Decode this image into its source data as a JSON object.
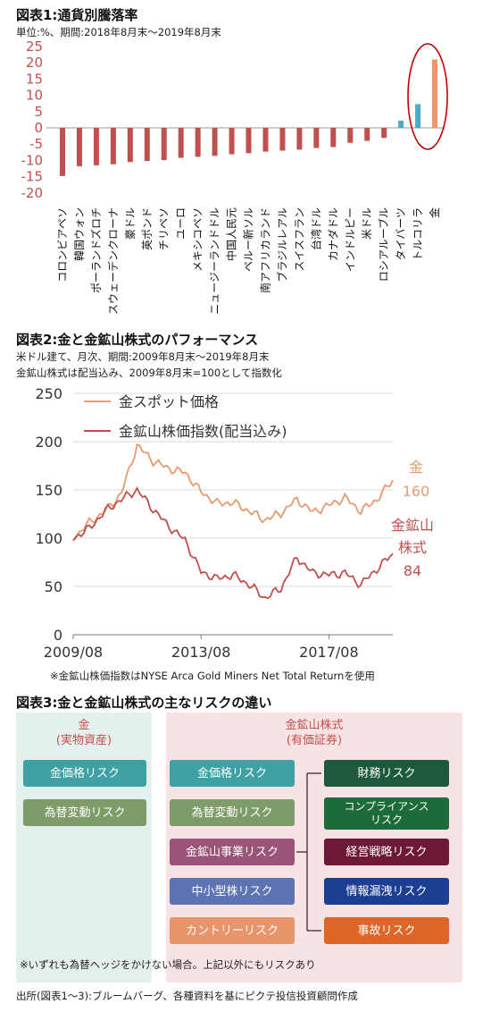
{
  "fig1": {
    "title": "図表1:通貨別騰落率",
    "subtitle": "単位:%、期間:2018年8月末〜2019年8月末"
  },
  "fig2": {
    "title": "図表2:金と金鉱山株式のパフォーマンス",
    "subtitle1": "米ドル建て、月次、期間:2009年8月末〜2019年8月末",
    "subtitle2": "金鉱山株式は配当込み、2009年8月末=100として指数化",
    "note": "※金鉱山株価指数はNYSE Arca Gold Miners Net Total Returnを使用",
    "gold_label": "金",
    "gold_value": "160",
    "miner_label1": "金鉱山",
    "miner_label2": "株式",
    "miner_value": "84"
  },
  "fig3": {
    "title": "図表3:金と金鉱山株式の主なリスクの違い",
    "gold_panel_title": "金\n(実物資産)",
    "miner_panel_title": "金鉱山株式\n(有価証券)",
    "gold_risks": [
      "金価格リスク",
      "為替変動リスク"
    ],
    "miner_risks": [
      "金価格リスク",
      "為替変動リスク",
      "金鉱山事業リスク",
      "中小型株リスク",
      "カントリーリスク"
    ],
    "business_risks": [
      "財務リスク",
      "コンプライアンス\nリスク",
      "経営戦略リスク",
      "情報漏洩リスク",
      "事故リスク"
    ],
    "note": "※いずれも為替ヘッジをかけない場合。上記以外にもリスクあり",
    "colors": {
      "gold_price": "#3fa0a6",
      "fx": "#7e9c68",
      "business": "#9a5478",
      "smallcap": "#5d73b2",
      "country": "#e8956b",
      "finance": "#1d5a3c",
      "compliance": "#1e6b3a",
      "strategy": "#6e1838",
      "info": "#1c3f93",
      "accident": "#dd6628",
      "gold_panel_bg": "#e4f0ee",
      "miner_panel_bg": "#f7e3e3",
      "gold_panel_text": "#c0504d",
      "miner_panel_text": "#c0504d"
    }
  },
  "source": "出所(図表1〜3):ブルームバーグ、各種資料を基にピクテ投信投資顧問作成",
  "chart_data": [
    {
      "type": "bar",
      "title": "図表1:通貨別騰落率",
      "ylim": [
        -20,
        25
      ],
      "yticks": [
        "25",
        "20",
        "15",
        "10",
        "5",
        "0",
        "-5",
        "-10",
        "-15",
        "-20"
      ],
      "categories": [
        "コロンビアペソ",
        "韓国ウォン",
        "ポーランドズロチ",
        "スウェーデンクローナ",
        "豪ドル",
        "英ポンド",
        "チリペソ",
        "ユーロ",
        "メキシコペソ",
        "ニュージーランドドル",
        "中国人民元",
        "ペルー新ソル",
        "南アフリカランド",
        "ブラジルレアル",
        "スイスフラン",
        "台湾ドル",
        "カナダドル",
        "インドルピー",
        "米ドル",
        "ロシアルーブル",
        "タイバーツ",
        "トルコリラ",
        "金"
      ],
      "values": [
        -14.8,
        -11.8,
        -11.5,
        -11.2,
        -10.5,
        -10.2,
        -9.9,
        -9.2,
        -8.9,
        -8.6,
        -8.1,
        -7.8,
        -7.3,
        -7.0,
        -6.7,
        -6.2,
        -5.9,
        -4.6,
        -4.0,
        -3.1,
        2.2,
        7.3,
        21.0
      ],
      "highlighted_category": "金",
      "colors": {
        "negative": "#c0504d",
        "positive": "#4bacc6",
        "gold": "#f0956a",
        "circle": "#c00000"
      }
    },
    {
      "type": "line",
      "title": "図表2:金と金鉱山株式のパフォーマンス",
      "ylim": [
        0,
        250
      ],
      "yticks": [
        "250",
        "200",
        "150",
        "100",
        "50",
        "0"
      ],
      "x_range": [
        "2009-08",
        "2019-08"
      ],
      "xticks": [
        "2009/08",
        "2013/08",
        "2017/08"
      ],
      "series": [
        {
          "name": "金スポット価格",
          "color": "#e69a6e",
          "x": [
            "2009-08",
            "2010-02",
            "2010-08",
            "2011-02",
            "2011-08",
            "2012-02",
            "2012-08",
            "2013-02",
            "2013-08",
            "2014-02",
            "2014-08",
            "2015-02",
            "2015-08",
            "2016-02",
            "2016-08",
            "2017-02",
            "2017-08",
            "2018-02",
            "2018-08",
            "2019-02",
            "2019-08"
          ],
          "values": [
            100,
            116,
            128,
            146,
            196,
            180,
            172,
            168,
            148,
            136,
            137,
            128,
            119,
            126,
            140,
            127,
            134,
            142,
            128,
            140,
            160
          ]
        },
        {
          "name": "金鉱山株価指数(配当込み)",
          "color": "#c0504d",
          "x": [
            "2009-08",
            "2010-02",
            "2010-08",
            "2011-02",
            "2011-08",
            "2012-02",
            "2012-08",
            "2013-02",
            "2013-08",
            "2014-02",
            "2014-08",
            "2015-02",
            "2015-08",
            "2016-02",
            "2016-08",
            "2017-02",
            "2017-08",
            "2018-02",
            "2018-08",
            "2019-02",
            "2019-08"
          ],
          "values": [
            100,
            110,
            128,
            140,
            150,
            130,
            112,
            98,
            65,
            58,
            62,
            52,
            38,
            48,
            80,
            64,
            62,
            64,
            52,
            68,
            84
          ]
        }
      ]
    }
  ]
}
